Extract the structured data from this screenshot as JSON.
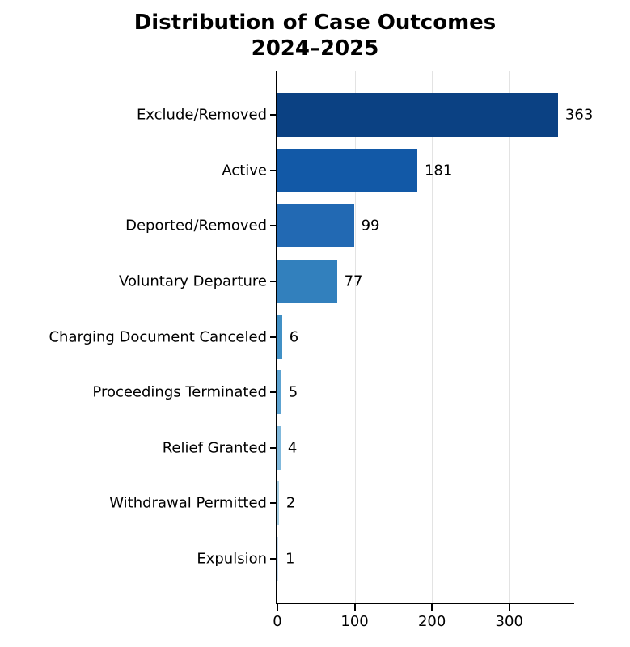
{
  "title": {
    "line1": "Distribution of Case Outcomes",
    "line2": "2024–2025"
  },
  "chart_data": {
    "type": "bar",
    "orientation": "horizontal",
    "title": "Distribution of Case Outcomes 2024–2025",
    "categories": [
      "Exclude/Removed",
      "Active",
      "Deported/Removed",
      "Voluntary Departure",
      "Charging Document Canceled",
      "Proceedings Terminated",
      "Relief Granted",
      "Withdrawal Permitted",
      "Expulsion"
    ],
    "values": [
      363,
      181,
      99,
      77,
      6,
      5,
      4,
      2,
      1
    ],
    "value_labels": [
      "363",
      "181",
      "99",
      "77",
      "6",
      "5",
      "4",
      "2",
      "1"
    ],
    "bar_colors": [
      "#0b4183",
      "#1259a7",
      "#2269b3",
      "#3280bd",
      "#4190c5",
      "#5da3d1",
      "#81b9dc",
      "#a6cee3",
      "#c6dbef"
    ],
    "xlabel": "",
    "ylabel": "",
    "x_ticks": [
      0,
      100,
      200,
      300
    ],
    "xlim": [
      0,
      384
    ],
    "grid": "vertical",
    "legend": "none",
    "background": "#ffffff",
    "grid_color": "#e3e3e3",
    "axis_color": "#000000"
  }
}
